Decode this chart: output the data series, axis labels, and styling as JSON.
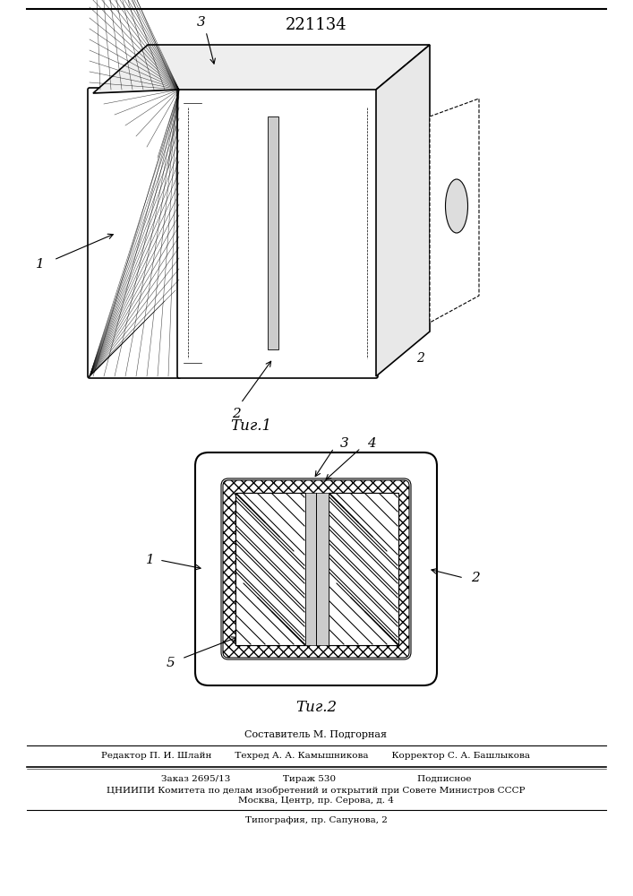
{
  "patent_number": "221134",
  "fig1_label": "Τиг.1",
  "fig2_label": "Τиг.2",
  "footer_line1": "Составитель М. Подгорная",
  "footer_line2": "Редактор П. И. Шлайн        Техред А. А. Камышникова        Корректор С. А. Башлыкова",
  "footer_line3": "Заказ 2695/13                  Тираж 530                            Подписное",
  "footer_line4": "ЦНИИПИ Комитета по делам изобретений и открытий при Совете Министров СССР",
  "footer_line5": "Москва, Центр, пр. Серова, д. 4",
  "footer_line6": "Типография, пр. Сапунова, 2",
  "bg_color": "#ffffff",
  "line_color": "#000000",
  "hatch_color": "#000000",
  "light_gray": "#d0d0d0"
}
